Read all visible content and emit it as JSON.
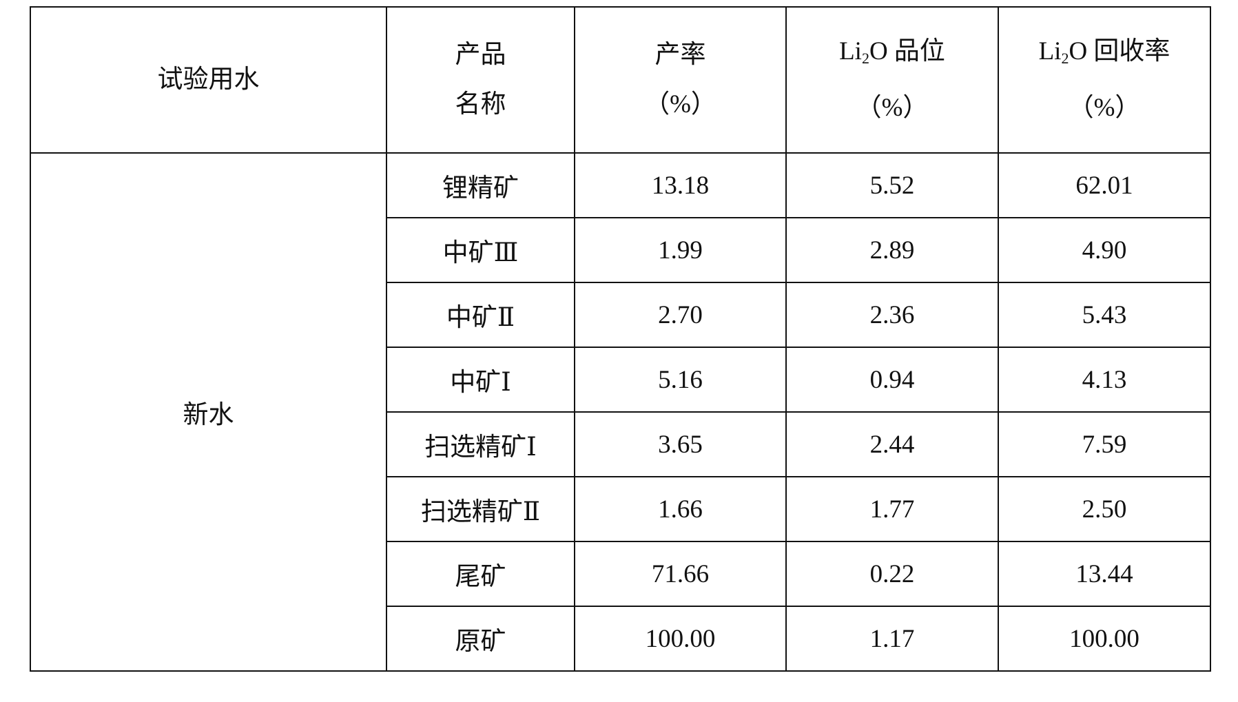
{
  "header": {
    "water": "试验用水",
    "product_line1": "产品",
    "product_line2": "名称",
    "yield_line1": "产率",
    "yield_line2": "（%）",
    "grade": {
      "pre": "Li",
      "sub": "2",
      "post": "O 品位"
    },
    "grade_line2": "（%）",
    "recovery": {
      "pre": "Li",
      "sub": "2",
      "post": "O 回收率"
    },
    "recovery_line2": "（%）"
  },
  "water_type": "新水",
  "rows": [
    {
      "product": "锂精矿",
      "yield": "13.18",
      "grade": "5.52",
      "recovery": "62.01"
    },
    {
      "product": "中矿Ⅲ",
      "yield": "1.99",
      "grade": "2.89",
      "recovery": "4.90"
    },
    {
      "product": "中矿Ⅱ",
      "yield": "2.70",
      "grade": "2.36",
      "recovery": "5.43"
    },
    {
      "product": "中矿Ⅰ",
      "yield": "5.16",
      "grade": "0.94",
      "recovery": "4.13"
    },
    {
      "product": "扫选精矿Ⅰ",
      "yield": "3.65",
      "grade": "2.44",
      "recovery": "7.59"
    },
    {
      "product": "扫选精矿Ⅱ",
      "yield": "1.66",
      "grade": "1.77",
      "recovery": "2.50"
    },
    {
      "product": "尾矿",
      "yield": "71.66",
      "grade": "0.22",
      "recovery": "13.44"
    },
    {
      "product": "原矿",
      "yield": "100.00",
      "grade": "1.17",
      "recovery": "100.00"
    }
  ]
}
